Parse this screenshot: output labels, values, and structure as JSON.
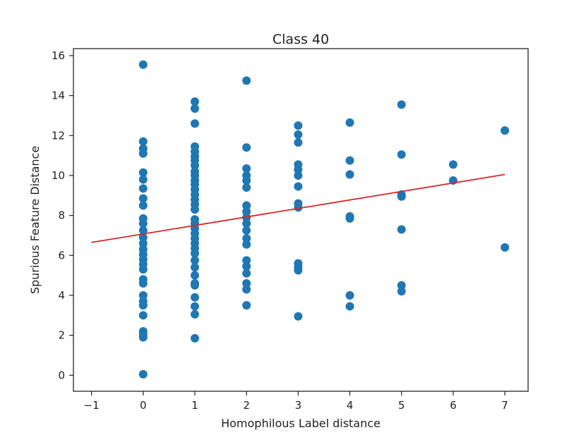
{
  "chart_data": {
    "type": "scatter",
    "title": "Class 40",
    "xlabel": "Homophilous Label distance",
    "ylabel": "Spurious Feature Distance",
    "xlim": [
      -1.35,
      7.45
    ],
    "ylim": [
      -0.8,
      16.35
    ],
    "xticks": [
      -1,
      0,
      1,
      2,
      3,
      4,
      5,
      6,
      7
    ],
    "yticks": [
      0,
      2,
      4,
      6,
      8,
      10,
      12,
      14,
      16
    ],
    "grid": false,
    "legend": "none",
    "colors": {
      "points": "#1f77b4",
      "fit_line": "#d62728"
    },
    "series": [
      {
        "kind": "points",
        "points": [
          [
            0,
            15.55
          ],
          [
            0,
            11.7
          ],
          [
            0,
            11.35
          ],
          [
            0,
            11.1
          ],
          [
            0,
            10.15
          ],
          [
            0,
            9.8
          ],
          [
            0,
            9.35
          ],
          [
            0,
            8.85
          ],
          [
            0,
            8.5
          ],
          [
            0,
            7.85
          ],
          [
            0,
            7.6
          ],
          [
            0,
            7.25
          ],
          [
            0,
            6.9
          ],
          [
            0,
            6.6
          ],
          [
            0,
            6.3
          ],
          [
            0,
            6.05
          ],
          [
            0,
            5.8
          ],
          [
            0,
            5.55
          ],
          [
            0,
            5.3
          ],
          [
            0,
            4.8
          ],
          [
            0,
            4.6
          ],
          [
            0,
            4.0
          ],
          [
            0,
            3.7
          ],
          [
            0,
            3.5
          ],
          [
            0,
            3.0
          ],
          [
            0,
            2.2
          ],
          [
            0,
            2.05
          ],
          [
            0,
            1.9
          ],
          [
            0,
            0.05
          ],
          [
            1,
            13.7
          ],
          [
            1,
            13.35
          ],
          [
            1,
            12.6
          ],
          [
            1,
            11.45
          ],
          [
            1,
            11.2
          ],
          [
            1,
            10.95
          ],
          [
            1,
            10.75
          ],
          [
            1,
            10.5
          ],
          [
            1,
            10.2
          ],
          [
            1,
            10.0
          ],
          [
            1,
            9.75
          ],
          [
            1,
            9.55
          ],
          [
            1,
            9.3
          ],
          [
            1,
            9.05
          ],
          [
            1,
            8.8
          ],
          [
            1,
            8.55
          ],
          [
            1,
            8.3
          ],
          [
            1,
            7.8
          ],
          [
            1,
            7.6
          ],
          [
            1,
            7.35
          ],
          [
            1,
            7.1
          ],
          [
            1,
            6.85
          ],
          [
            1,
            6.6
          ],
          [
            1,
            6.35
          ],
          [
            1,
            6.1
          ],
          [
            1,
            5.75
          ],
          [
            1,
            5.4
          ],
          [
            1,
            5.0
          ],
          [
            1,
            4.6
          ],
          [
            1,
            4.5
          ],
          [
            1,
            3.9
          ],
          [
            1,
            3.45
          ],
          [
            1,
            3.05
          ],
          [
            1,
            1.85
          ],
          [
            2,
            14.75
          ],
          [
            2,
            11.4
          ],
          [
            2,
            10.35
          ],
          [
            2,
            10.0
          ],
          [
            2,
            9.75
          ],
          [
            2,
            9.4
          ],
          [
            2,
            8.5
          ],
          [
            2,
            8.2
          ],
          [
            2,
            7.9
          ],
          [
            2,
            7.6
          ],
          [
            2,
            7.25
          ],
          [
            2,
            6.85
          ],
          [
            2,
            6.55
          ],
          [
            2,
            5.75
          ],
          [
            2,
            5.45
          ],
          [
            2,
            5.1
          ],
          [
            2,
            4.6
          ],
          [
            2,
            4.3
          ],
          [
            2,
            3.5
          ],
          [
            3,
            12.5
          ],
          [
            3,
            12.05
          ],
          [
            3,
            11.65
          ],
          [
            3,
            10.55
          ],
          [
            3,
            10.3
          ],
          [
            3,
            10.0
          ],
          [
            3,
            9.45
          ],
          [
            3,
            8.6
          ],
          [
            3,
            8.4
          ],
          [
            3,
            5.6
          ],
          [
            3,
            5.4
          ],
          [
            3,
            5.25
          ],
          [
            3,
            2.95
          ],
          [
            4,
            12.65
          ],
          [
            4,
            10.75
          ],
          [
            4,
            10.05
          ],
          [
            4,
            7.95
          ],
          [
            4,
            7.85
          ],
          [
            4,
            4.0
          ],
          [
            4,
            3.45
          ],
          [
            5,
            13.55
          ],
          [
            5,
            11.05
          ],
          [
            5,
            9.05
          ],
          [
            5,
            8.95
          ],
          [
            5,
            7.3
          ],
          [
            5,
            4.5
          ],
          [
            5,
            4.2
          ],
          [
            6,
            10.55
          ],
          [
            6,
            9.75
          ],
          [
            7,
            12.25
          ],
          [
            7,
            6.4
          ]
        ]
      },
      {
        "kind": "regression-line",
        "x": [
          -1,
          7
        ],
        "y": [
          6.65,
          10.05
        ]
      }
    ]
  }
}
